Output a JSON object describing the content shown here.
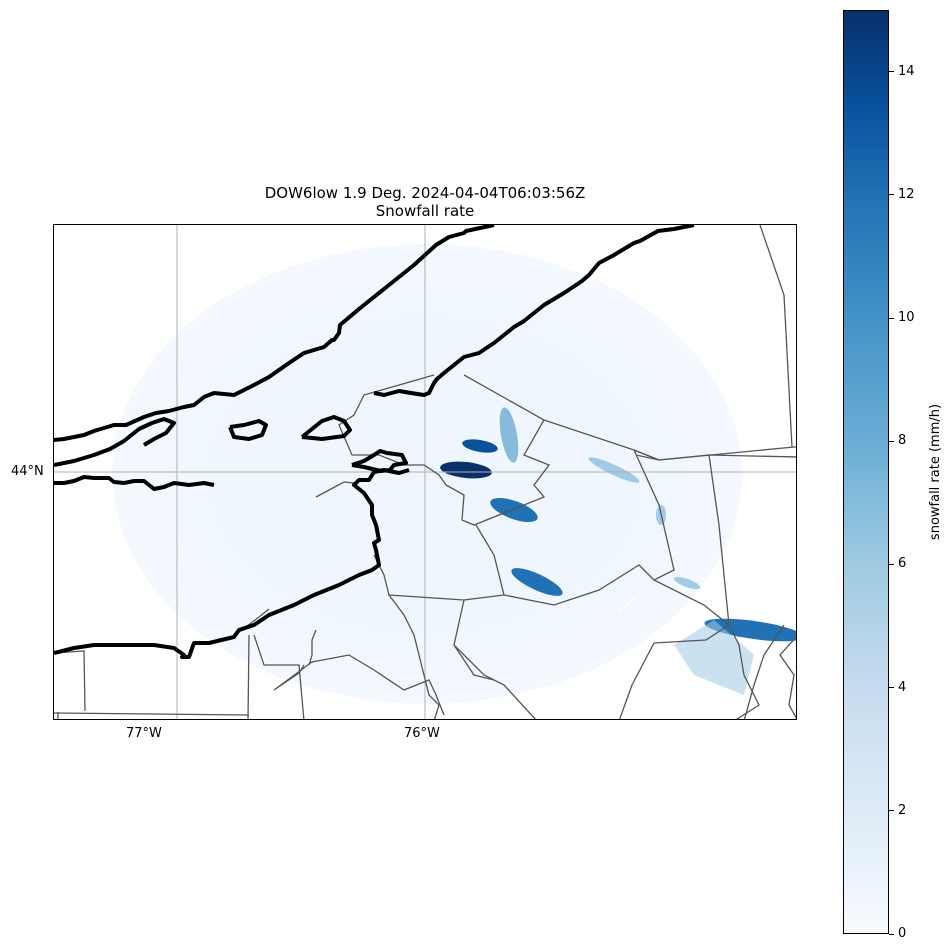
{
  "map": {
    "title_line1": "DOW6low 1.9 Deg. 2024-04-04T06:03:56Z",
    "title_line2": "Snowfall rate",
    "lon_labels": [
      "77°W",
      "76°W"
    ],
    "lat_labels": [
      "44°N"
    ],
    "colormap": "Blues",
    "gridlines": true
  },
  "colorbar": {
    "label": "snowfall rate (mm/h)",
    "ticks": [
      "0",
      "2",
      "4",
      "6",
      "8",
      "10",
      "12",
      "14"
    ],
    "range": [
      0,
      15
    ]
  },
  "colors": {
    "coastline": "#000000",
    "borders": "#555555",
    "grid": "#b0b0b0",
    "radar_low": "#f7fbff",
    "radar_high": "#08306b"
  }
}
